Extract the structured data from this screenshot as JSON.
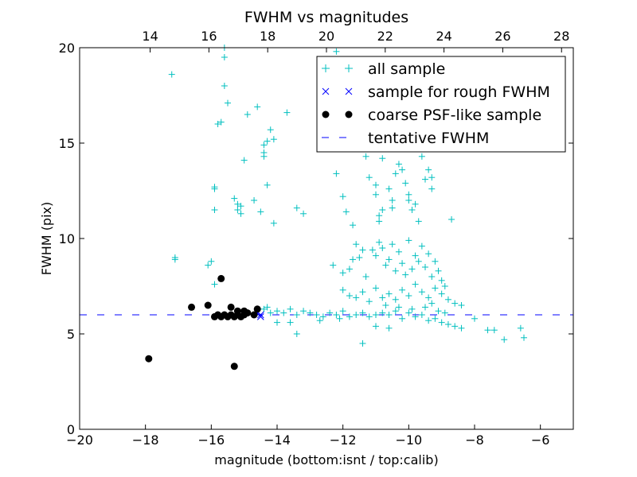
{
  "chart_data": {
    "type": "scatter",
    "title": "FWHM vs magnitudes",
    "xlabel": "magnitude (bottom:isnt / top:calib)",
    "ylabel": "FWHM (pix)",
    "xlim": [
      -20,
      -5
    ],
    "ylim": [
      0,
      20
    ],
    "top_xlim": [
      11.6,
      28.4
    ],
    "x_ticks": [
      -20,
      -18,
      -16,
      -14,
      -12,
      -10,
      -8,
      -6
    ],
    "x_tick_labels": [
      "−20",
      "−18",
      "−16",
      "−14",
      "−12",
      "−10",
      "−8",
      "−6"
    ],
    "top_ticks": [
      14,
      16,
      18,
      20,
      22,
      24,
      26,
      28
    ],
    "top_tick_labels": [
      "14",
      "16",
      "18",
      "20",
      "22",
      "24",
      "26",
      "28"
    ],
    "y_ticks": [
      0,
      5,
      10,
      15,
      20
    ],
    "y_tick_labels": [
      "0",
      "5",
      "10",
      "15",
      "20"
    ],
    "grid": false,
    "legend_position": "top-right",
    "series": [
      {
        "name": "all sample",
        "marker": "plus",
        "color": "#00bfbf",
        "points": [
          [
            -17.2,
            18.6
          ],
          [
            -17.1,
            9.0
          ],
          [
            -17.1,
            8.9
          ],
          [
            -16.0,
            8.8
          ],
          [
            -16.1,
            8.6
          ],
          [
            -15.9,
            7.6
          ],
          [
            -15.9,
            11.5
          ],
          [
            -15.9,
            12.7
          ],
          [
            -15.9,
            12.6
          ],
          [
            -15.8,
            16.0
          ],
          [
            -15.7,
            16.1
          ],
          [
            -15.6,
            18.0
          ],
          [
            -15.5,
            17.1
          ],
          [
            -15.6,
            19.5
          ],
          [
            -15.6,
            20.0
          ],
          [
            -15.3,
            12.1
          ],
          [
            -15.2,
            11.8
          ],
          [
            -15.2,
            11.5
          ],
          [
            -15.1,
            11.7
          ],
          [
            -15.1,
            11.3
          ],
          [
            -15.0,
            14.1
          ],
          [
            -14.9,
            16.5
          ],
          [
            -14.7,
            12.0
          ],
          [
            -14.6,
            16.9
          ],
          [
            -14.5,
            11.4
          ],
          [
            -14.4,
            14.3
          ],
          [
            -14.4,
            14.5
          ],
          [
            -14.4,
            14.9
          ],
          [
            -14.3,
            15.1
          ],
          [
            -14.3,
            12.8
          ],
          [
            -14.2,
            15.7
          ],
          [
            -14.1,
            15.2
          ],
          [
            -14.1,
            10.8
          ],
          [
            -13.7,
            16.6
          ],
          [
            -13.4,
            11.6
          ],
          [
            -13.2,
            11.3
          ],
          [
            -14.4,
            6.3
          ],
          [
            -14.3,
            6.4
          ],
          [
            -14.2,
            6.1
          ],
          [
            -14.0,
            6.2
          ],
          [
            -13.8,
            6.1
          ],
          [
            -13.6,
            6.3
          ],
          [
            -13.4,
            6.0
          ],
          [
            -13.2,
            6.2
          ],
          [
            -13.0,
            6.1
          ],
          [
            -12.8,
            6.0
          ],
          [
            -12.6,
            5.9
          ],
          [
            -12.4,
            6.1
          ],
          [
            -12.2,
            6.0
          ],
          [
            -12.0,
            6.2
          ],
          [
            -11.8,
            5.9
          ],
          [
            -11.6,
            6.0
          ],
          [
            -11.4,
            6.1
          ],
          [
            -11.2,
            5.9
          ],
          [
            -11.0,
            6.0
          ],
          [
            -10.8,
            6.1
          ],
          [
            -10.6,
            6.0
          ],
          [
            -10.4,
            6.2
          ],
          [
            -10.2,
            5.8
          ],
          [
            -10.0,
            6.1
          ],
          [
            -9.8,
            5.9
          ],
          [
            -9.6,
            6.0
          ],
          [
            -9.4,
            5.7
          ],
          [
            -9.2,
            5.8
          ],
          [
            -9.0,
            5.6
          ],
          [
            -8.8,
            5.5
          ],
          [
            -8.6,
            5.4
          ],
          [
            -8.4,
            5.3
          ],
          [
            -14.0,
            5.6
          ],
          [
            -13.4,
            5.0
          ],
          [
            -13.6,
            5.6
          ],
          [
            -12.7,
            5.7
          ],
          [
            -12.1,
            5.8
          ],
          [
            -11.4,
            4.5
          ],
          [
            -11.0,
            5.4
          ],
          [
            -10.6,
            5.3
          ],
          [
            -8.0,
            5.8
          ],
          [
            -7.6,
            5.2
          ],
          [
            -7.4,
            5.2
          ],
          [
            -7.1,
            4.7
          ],
          [
            -6.6,
            5.3
          ],
          [
            -6.5,
            4.8
          ],
          [
            -12.2,
            19.8
          ],
          [
            -12.2,
            13.4
          ],
          [
            -12.0,
            12.2
          ],
          [
            -11.9,
            11.4
          ],
          [
            -11.7,
            10.7
          ],
          [
            -11.6,
            9.7
          ],
          [
            -11.3,
            14.3
          ],
          [
            -11.2,
            13.2
          ],
          [
            -11.0,
            12.8
          ],
          [
            -11.0,
            12.3
          ],
          [
            -10.9,
            11.2
          ],
          [
            -10.9,
            10.9
          ],
          [
            -10.8,
            11.5
          ],
          [
            -10.8,
            14.2
          ],
          [
            -10.6,
            12.6
          ],
          [
            -10.5,
            12.0
          ],
          [
            -10.5,
            11.6
          ],
          [
            -10.4,
            13.4
          ],
          [
            -10.3,
            13.9
          ],
          [
            -10.2,
            13.6
          ],
          [
            -10.1,
            12.9
          ],
          [
            -10.0,
            12.3
          ],
          [
            -10.0,
            12.0
          ],
          [
            -9.9,
            11.5
          ],
          [
            -9.8,
            11.8
          ],
          [
            -9.7,
            10.9
          ],
          [
            -9.6,
            14.3
          ],
          [
            -9.5,
            13.1
          ],
          [
            -9.4,
            13.6
          ],
          [
            -9.3,
            13.2
          ],
          [
            -9.3,
            12.6
          ],
          [
            -8.7,
            11.0
          ],
          [
            -12.3,
            8.6
          ],
          [
            -12.0,
            8.2
          ],
          [
            -11.8,
            8.4
          ],
          [
            -11.7,
            8.9
          ],
          [
            -11.5,
            9.0
          ],
          [
            -11.4,
            9.4
          ],
          [
            -11.3,
            8.0
          ],
          [
            -11.1,
            9.4
          ],
          [
            -11.0,
            9.1
          ],
          [
            -10.9,
            9.8
          ],
          [
            -10.8,
            9.5
          ],
          [
            -10.7,
            8.6
          ],
          [
            -10.6,
            8.9
          ],
          [
            -10.5,
            9.7
          ],
          [
            -10.4,
            8.3
          ],
          [
            -10.3,
            9.3
          ],
          [
            -10.2,
            8.7
          ],
          [
            -10.1,
            8.1
          ],
          [
            -10.0,
            9.9
          ],
          [
            -9.9,
            8.4
          ],
          [
            -9.8,
            9.1
          ],
          [
            -9.7,
            8.8
          ],
          [
            -9.6,
            9.6
          ],
          [
            -9.5,
            8.5
          ],
          [
            -9.4,
            9.2
          ],
          [
            -9.3,
            8.0
          ],
          [
            -9.2,
            8.8
          ],
          [
            -9.1,
            8.3
          ],
          [
            -9.0,
            7.8
          ],
          [
            -8.9,
            7.5
          ],
          [
            -12.0,
            7.3
          ],
          [
            -11.8,
            7.0
          ],
          [
            -11.6,
            6.9
          ],
          [
            -11.4,
            7.2
          ],
          [
            -11.2,
            6.7
          ],
          [
            -11.0,
            7.4
          ],
          [
            -10.8,
            6.9
          ],
          [
            -10.6,
            7.1
          ],
          [
            -10.4,
            6.8
          ],
          [
            -10.2,
            7.3
          ],
          [
            -10.0,
            7.0
          ],
          [
            -9.8,
            7.6
          ],
          [
            -9.6,
            7.2
          ],
          [
            -9.4,
            6.9
          ],
          [
            -9.2,
            7.4
          ],
          [
            -9.0,
            7.1
          ],
          [
            -8.8,
            6.8
          ],
          [
            -8.6,
            6.6
          ],
          [
            -8.4,
            6.5
          ],
          [
            -9.5,
            6.4
          ],
          [
            -9.3,
            6.6
          ],
          [
            -9.1,
            6.2
          ],
          [
            -8.9,
            6.1
          ],
          [
            -10.7,
            6.5
          ],
          [
            -10.3,
            6.4
          ],
          [
            -9.9,
            6.3
          ]
        ]
      },
      {
        "name": "sample for rough FWHM",
        "marker": "x",
        "color": "#0000ff",
        "points": [
          [
            -14.5,
            5.9
          ],
          [
            -14.6,
            6.1
          ],
          [
            -14.5,
            6.0
          ]
        ]
      },
      {
        "name": "coarse PSF-like sample",
        "marker": "circle",
        "color": "#000000",
        "points": [
          [
            -17.9,
            3.7
          ],
          [
            -16.6,
            6.4
          ],
          [
            -16.1,
            6.5
          ],
          [
            -15.7,
            7.9
          ],
          [
            -15.3,
            3.3
          ],
          [
            -15.4,
            6.4
          ],
          [
            -15.2,
            6.2
          ],
          [
            -15.0,
            6.2
          ],
          [
            -14.6,
            6.3
          ],
          [
            -15.9,
            5.9
          ],
          [
            -15.8,
            6.0
          ],
          [
            -15.7,
            5.9
          ],
          [
            -15.6,
            6.0
          ],
          [
            -15.5,
            5.9
          ],
          [
            -15.4,
            6.0
          ],
          [
            -15.3,
            5.9
          ],
          [
            -15.2,
            6.0
          ],
          [
            -15.1,
            5.9
          ],
          [
            -15.0,
            6.0
          ],
          [
            -14.9,
            6.1
          ],
          [
            -14.7,
            6.0
          ]
        ]
      },
      {
        "name": "tentative FWHM",
        "marker": "dashed-line",
        "color": "#0000ff",
        "y_value": 6.0
      }
    ]
  }
}
